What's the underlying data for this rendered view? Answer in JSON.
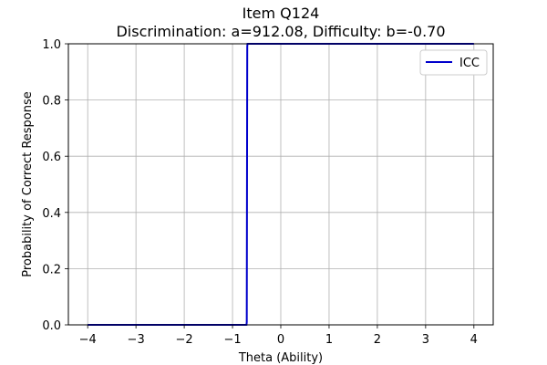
{
  "chart_data": {
    "type": "line",
    "title_line1": "Item Q124",
    "title_line2": "Discrimination: a=912.08, Difficulty: b=-0.70",
    "xlabel": "Theta (Ability)",
    "ylabel": "Probability of Correct Response",
    "xlim": [
      -4.4,
      4.4
    ],
    "ylim": [
      0,
      1
    ],
    "x_ticks": [
      -4,
      -3,
      -2,
      -1,
      0,
      1,
      2,
      3,
      4
    ],
    "x_tick_labels": [
      "−4",
      "−3",
      "−2",
      "−1",
      "0",
      "1",
      "2",
      "3",
      "4"
    ],
    "y_ticks": [
      0,
      0.2,
      0.4,
      0.6,
      0.8,
      1.0
    ],
    "y_tick_labels": [
      "0.0",
      "0.2",
      "0.4",
      "0.6",
      "0.8",
      "1.0"
    ],
    "grid": true,
    "legend_position": "top-right",
    "series": [
      {
        "name": "ICC",
        "color": "#0000cc",
        "a": 912.08,
        "b": -0.7,
        "x_range": [
          -4,
          4
        ]
      }
    ]
  }
}
